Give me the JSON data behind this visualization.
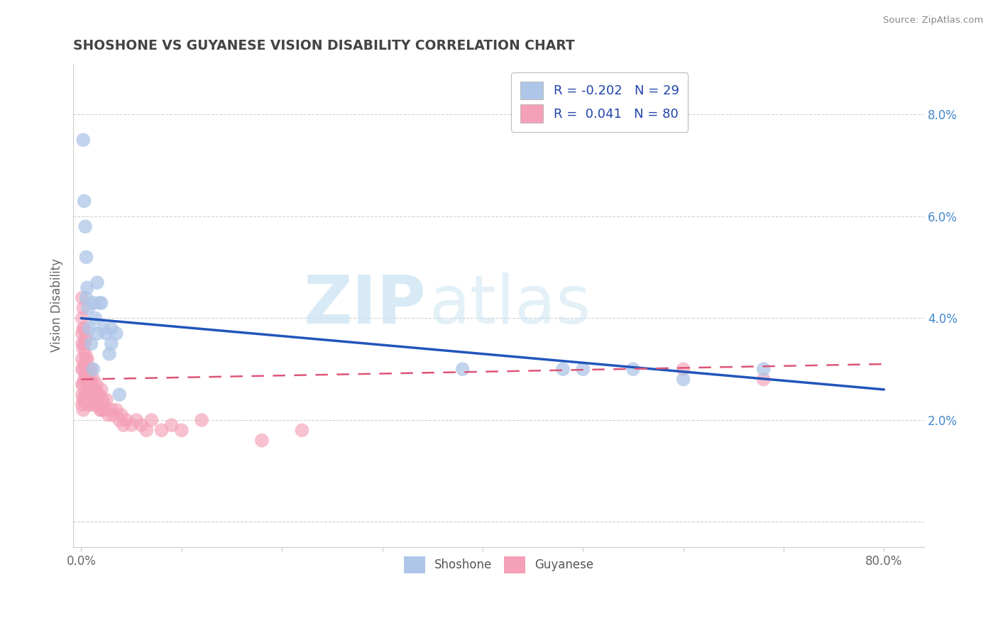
{
  "title": "SHOSHONE VS GUYANESE VISION DISABILITY CORRELATION CHART",
  "source": "Source: ZipAtlas.com",
  "ylabel": "Vision Disability",
  "watermark_zip": "ZIP",
  "watermark_atlas": "atlas",
  "x_tick_positions": [
    0.0,
    0.1,
    0.2,
    0.3,
    0.4,
    0.5,
    0.6,
    0.7,
    0.8
  ],
  "x_tick_labels": [
    "0.0%",
    "",
    "",
    "",
    "",
    "",
    "",
    "",
    "80.0%"
  ],
  "y_tick_positions": [
    0.0,
    0.02,
    0.04,
    0.06,
    0.08
  ],
  "y_tick_labels": [
    "",
    "2.0%",
    "4.0%",
    "6.0%",
    "8.0%"
  ],
  "xlim": [
    -0.008,
    0.84
  ],
  "ylim": [
    -0.005,
    0.09
  ],
  "shoshone_R": -0.202,
  "shoshone_N": 29,
  "guyanese_R": 0.041,
  "guyanese_N": 80,
  "legend_label_shoshone": "Shoshone",
  "legend_label_guyanese": "Guyanese",
  "shoshone_color": "#aec6e8",
  "guyanese_color": "#f4a0b8",
  "shoshone_line_color": "#2255bb",
  "guyanese_line_color": "#dd5577",
  "background_color": "#ffffff",
  "title_color": "#444444",
  "grid_color": "#cccccc",
  "blue_line_x0": 0.0,
  "blue_line_y0": 0.04,
  "blue_line_x1": 0.8,
  "blue_line_y1": 0.026,
  "pink_line_x0": 0.0,
  "pink_line_y0": 0.028,
  "pink_line_x1": 0.8,
  "pink_line_y1": 0.031,
  "shoshone_x": [
    0.002,
    0.003,
    0.004,
    0.005,
    0.006,
    0.007,
    0.008,
    0.01,
    0.012,
    0.014,
    0.016,
    0.018,
    0.022,
    0.03,
    0.038,
    0.012,
    0.016,
    0.02,
    0.025,
    0.028,
    0.03,
    0.035,
    0.5,
    0.55,
    0.6,
    0.68,
    0.38,
    0.48,
    0.005
  ],
  "shoshone_y": [
    0.075,
    0.063,
    0.058,
    0.052,
    0.046,
    0.042,
    0.038,
    0.035,
    0.03,
    0.04,
    0.047,
    0.043,
    0.038,
    0.035,
    0.025,
    0.043,
    0.037,
    0.043,
    0.037,
    0.033,
    0.038,
    0.037,
    0.03,
    0.03,
    0.028,
    0.03,
    0.03,
    0.03,
    0.044
  ],
  "guyanese_x": [
    0.001,
    0.001,
    0.001,
    0.001,
    0.001,
    0.001,
    0.001,
    0.001,
    0.001,
    0.002,
    0.002,
    0.002,
    0.002,
    0.002,
    0.002,
    0.002,
    0.003,
    0.003,
    0.003,
    0.003,
    0.003,
    0.004,
    0.004,
    0.004,
    0.004,
    0.005,
    0.005,
    0.005,
    0.005,
    0.006,
    0.006,
    0.006,
    0.007,
    0.007,
    0.007,
    0.008,
    0.008,
    0.009,
    0.009,
    0.01,
    0.01,
    0.01,
    0.011,
    0.012,
    0.012,
    0.013,
    0.014,
    0.015,
    0.015,
    0.016,
    0.017,
    0.018,
    0.019,
    0.02,
    0.02,
    0.021,
    0.022,
    0.023,
    0.025,
    0.027,
    0.03,
    0.032,
    0.035,
    0.038,
    0.04,
    0.042,
    0.045,
    0.05,
    0.055,
    0.06,
    0.065,
    0.07,
    0.08,
    0.09,
    0.1,
    0.12,
    0.18,
    0.22,
    0.6,
    0.68
  ],
  "guyanese_y": [
    0.044,
    0.04,
    0.037,
    0.035,
    0.032,
    0.03,
    0.027,
    0.025,
    0.023,
    0.042,
    0.038,
    0.034,
    0.03,
    0.027,
    0.024,
    0.022,
    0.038,
    0.035,
    0.031,
    0.028,
    0.024,
    0.036,
    0.033,
    0.029,
    0.025,
    0.036,
    0.032,
    0.029,
    0.025,
    0.032,
    0.028,
    0.024,
    0.03,
    0.027,
    0.023,
    0.03,
    0.026,
    0.028,
    0.025,
    0.03,
    0.027,
    0.023,
    0.026,
    0.028,
    0.024,
    0.025,
    0.026,
    0.027,
    0.023,
    0.025,
    0.023,
    0.025,
    0.022,
    0.026,
    0.022,
    0.024,
    0.022,
    0.023,
    0.024,
    0.021,
    0.022,
    0.021,
    0.022,
    0.02,
    0.021,
    0.019,
    0.02,
    0.019,
    0.02,
    0.019,
    0.018,
    0.02,
    0.018,
    0.019,
    0.018,
    0.02,
    0.016,
    0.018,
    0.03,
    0.028
  ]
}
